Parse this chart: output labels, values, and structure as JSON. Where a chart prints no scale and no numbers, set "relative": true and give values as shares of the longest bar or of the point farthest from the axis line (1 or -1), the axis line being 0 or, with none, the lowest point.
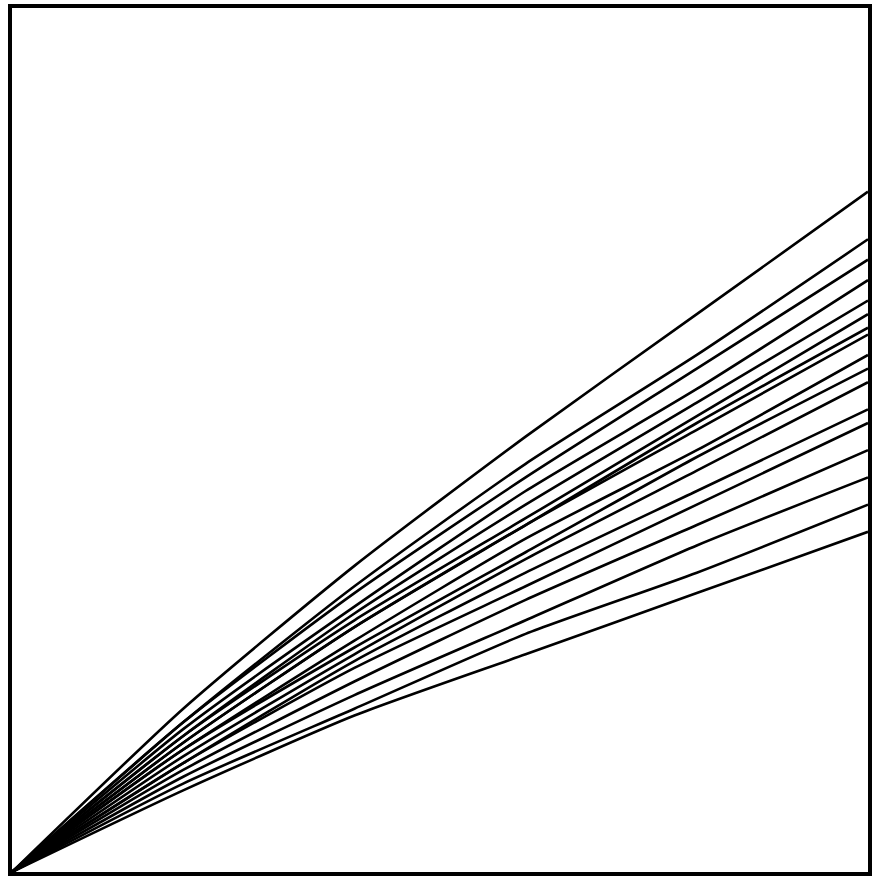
{
  "chart_data": {
    "type": "line",
    "relative": true,
    "categories": [
      null,
      null,
      null,
      null,
      null,
      null
    ],
    "series": [
      {
        "color": "#000000",
        "values": [
          0,
          0.24,
          0.45,
          0.64,
          0.82,
          1
        ]
      },
      {
        "color": "#000000",
        "values": [
          0,
          0.22,
          0.42,
          0.6,
          0.76,
          0.93
        ]
      },
      {
        "color": "#000000",
        "values": [
          0,
          0.22,
          0.41,
          0.58,
          0.74,
          0.9
        ]
      },
      {
        "color": "#000000",
        "values": [
          0,
          0.21,
          0.39,
          0.56,
          0.71,
          0.87
        ]
      },
      {
        "color": "#000000",
        "values": [
          0,
          0.2,
          0.38,
          0.54,
          0.69,
          0.84
        ]
      },
      {
        "color": "#000000",
        "values": [
          0,
          0.2,
          0.37,
          0.52,
          0.67,
          0.82
        ]
      },
      {
        "color": "#000000",
        "values": [
          0,
          0.19,
          0.36,
          0.51,
          0.66,
          0.8
        ]
      },
      {
        "color": "#000000",
        "values": [
          0,
          0.19,
          0.36,
          0.51,
          0.65,
          0.79
        ]
      },
      {
        "color": "#000000",
        "values": [
          0,
          0.18,
          0.34,
          0.49,
          0.62,
          0.76
        ]
      },
      {
        "color": "#000000",
        "values": [
          0,
          0.18,
          0.33,
          0.47,
          0.61,
          0.74
        ]
      },
      {
        "color": "#000000",
        "values": [
          0,
          0.17,
          0.32,
          0.46,
          0.59,
          0.72
        ]
      },
      {
        "color": "#000000",
        "values": [
          0,
          0.16,
          0.31,
          0.44,
          0.56,
          0.68
        ]
      },
      {
        "color": "#000000",
        "values": [
          0,
          0.16,
          0.3,
          0.42,
          0.54,
          0.66
        ]
      },
      {
        "color": "#000000",
        "values": [
          0,
          0.15,
          0.28,
          0.4,
          0.51,
          0.62
        ]
      },
      {
        "color": "#000000",
        "values": [
          0,
          0.14,
          0.26,
          0.37,
          0.48,
          0.58
        ]
      },
      {
        "color": "#000000",
        "values": [
          0,
          0.13,
          0.24,
          0.35,
          0.44,
          0.54
        ]
      },
      {
        "color": "#000000",
        "values": [
          0,
          0.12,
          0.23,
          0.32,
          0.41,
          0.5
        ]
      }
    ]
  }
}
